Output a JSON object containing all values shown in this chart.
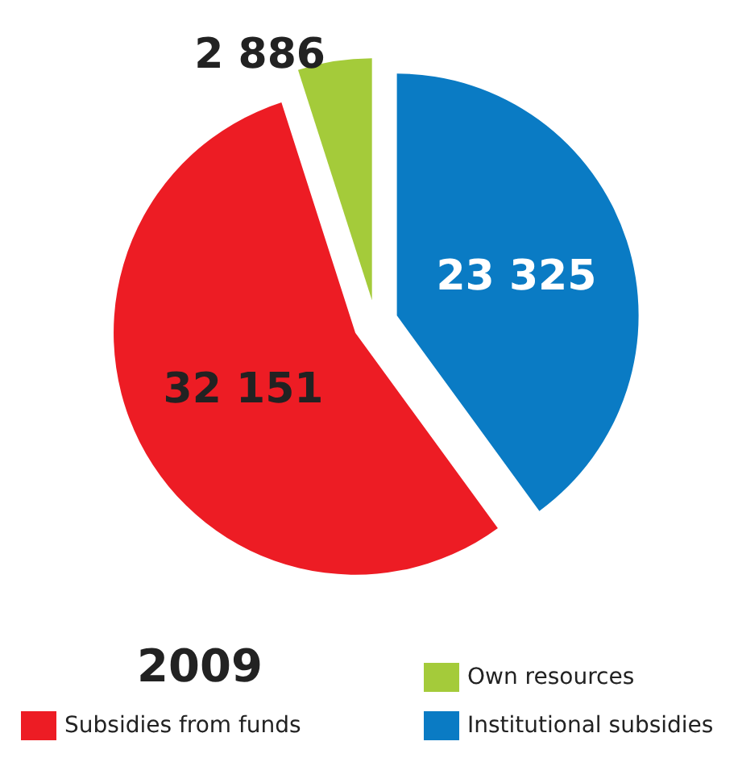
{
  "chart_data": {
    "type": "pie",
    "title": "2009",
    "categories": [
      "Institutional subsidies",
      "Subsidies from funds",
      "Own resources"
    ],
    "values": [
      23325,
      32151,
      2886
    ],
    "colors": [
      "#0a7bc4",
      "#ed1c24",
      "#a4cb3a"
    ],
    "value_labels": [
      "23 325",
      "32 151",
      "2 886"
    ],
    "legend": "bottom"
  }
}
